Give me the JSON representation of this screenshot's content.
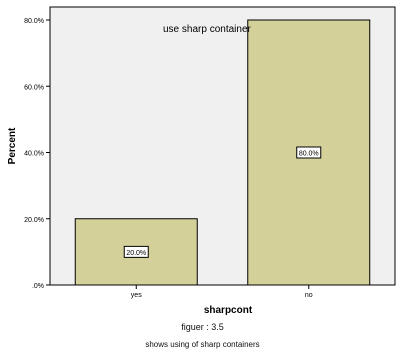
{
  "chart_data": {
    "type": "bar",
    "title": "use sharp container",
    "xlabel": "sharpcont",
    "ylabel": "Percent",
    "categories": [
      "yes",
      "no"
    ],
    "values": [
      20.0,
      80.0
    ],
    "data_labels": [
      "20.0%",
      "80.0%"
    ],
    "ylim": [
      0,
      80
    ],
    "yticks": [
      0,
      20,
      40,
      60,
      80
    ],
    "ytick_labels": [
      ".0%",
      "20.0%",
      "40.0%",
      "60.0%",
      "80.0%"
    ],
    "grid": false,
    "legend": "none",
    "colors": {
      "bar_fill": "#d4d09a",
      "bar_stroke": "#000000",
      "plot_background": "#f0f0f0"
    }
  },
  "caption": {
    "figure_number": "figuer :   3.5",
    "text": "shows using of sharp containers"
  }
}
